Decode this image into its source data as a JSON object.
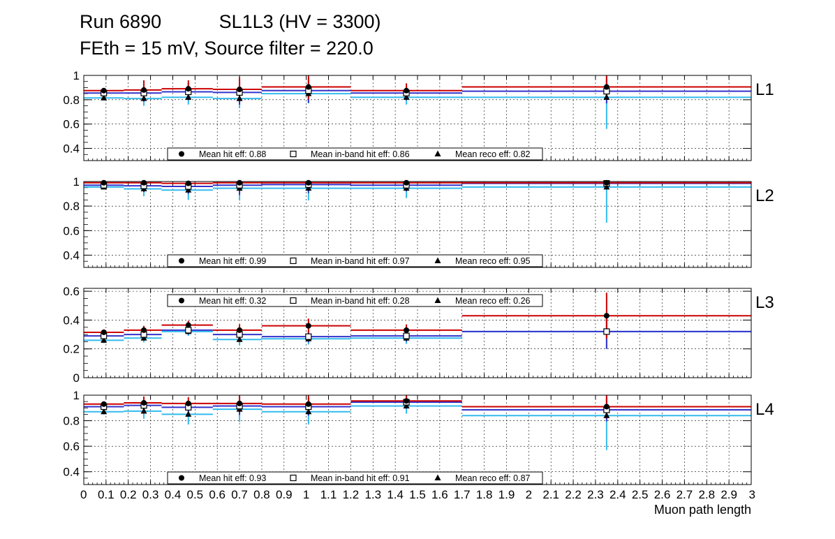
{
  "header": {
    "line1": "Run 6890           SL1L3 (HV = 3300)",
    "line2": "FEth = 15 mV, Source filter = 220.0"
  },
  "colors": {
    "hit": "#cc0000",
    "inband": "#3333cc",
    "reco": "#33bbee",
    "marker": "#000000"
  },
  "chart_data": [
    {
      "type": "scatter",
      "layer_label": "L1",
      "xlim": [
        0,
        3
      ],
      "ylim": [
        0.3,
        1.0
      ],
      "yticks": [
        0.4,
        0.6,
        0.8,
        1
      ],
      "ytick_labels": [
        "0.4",
        "0.6",
        "0.8",
        "1"
      ],
      "grid": true,
      "legend_position": "bottom-center",
      "bins": [
        [
          0.0,
          0.18
        ],
        [
          0.18,
          0.35
        ],
        [
          0.35,
          0.58
        ],
        [
          0.58,
          0.8
        ],
        [
          0.8,
          1.2
        ],
        [
          1.2,
          1.7
        ],
        [
          1.7,
          3.0
        ]
      ],
      "x_points": [
        0.09,
        0.27,
        0.47,
        0.7,
        1.01,
        1.45,
        2.35
      ],
      "series": [
        {
          "name": "Mean hit  eff: 0.88",
          "marker": "circle",
          "values": [
            0.875,
            0.88,
            0.89,
            0.885,
            0.905,
            0.875,
            0.905
          ],
          "errors": [
            0.02,
            0.08,
            0.07,
            0.1,
            0.1,
            0.06,
            0.1
          ]
        },
        {
          "name": "Mean in-band hit eff: 0.86",
          "marker": "square",
          "values": [
            0.855,
            0.855,
            0.865,
            0.86,
            0.875,
            0.855,
            0.87
          ],
          "errors": [
            0.02,
            0.07,
            0.07,
            0.1,
            0.1,
            0.06,
            0.1
          ]
        },
        {
          "name": "Mean reco eff: 0.82",
          "marker": "triangle",
          "values": [
            0.815,
            0.81,
            0.82,
            0.81,
            0.85,
            0.82,
            0.82
          ],
          "errors": [
            0.02,
            0.06,
            0.06,
            0.08,
            0.08,
            0.06,
            0.26
          ]
        }
      ]
    },
    {
      "type": "scatter",
      "layer_label": "L2",
      "xlim": [
        0,
        3
      ],
      "ylim": [
        0.3,
        1.0
      ],
      "yticks": [
        0.4,
        0.6,
        0.8,
        1
      ],
      "ytick_labels": [
        "0.4",
        "0.6",
        "0.8",
        "1"
      ],
      "grid": true,
      "legend_position": "bottom-center",
      "bins": [
        [
          0.0,
          0.18
        ],
        [
          0.18,
          0.35
        ],
        [
          0.35,
          0.58
        ],
        [
          0.58,
          0.8
        ],
        [
          0.8,
          1.2
        ],
        [
          1.2,
          1.7
        ],
        [
          1.7,
          3.0
        ]
      ],
      "x_points": [
        0.09,
        0.27,
        0.47,
        0.7,
        1.01,
        1.45,
        2.35
      ],
      "series": [
        {
          "name": "Mean hit  eff: 0.99",
          "marker": "circle",
          "values": [
            0.99,
            0.99,
            0.985,
            0.99,
            0.99,
            0.99,
            0.99
          ],
          "errors": [
            0.015,
            0.04,
            0.05,
            0.06,
            0.05,
            0.04,
            0.03
          ]
        },
        {
          "name": "Mean in-band hit eff: 0.97",
          "marker": "square",
          "values": [
            0.97,
            0.965,
            0.96,
            0.97,
            0.975,
            0.97,
            0.985
          ],
          "errors": [
            0.015,
            0.05,
            0.06,
            0.08,
            0.07,
            0.05,
            0.05
          ]
        },
        {
          "name": "Mean reco eff: 0.95",
          "marker": "triangle",
          "values": [
            0.955,
            0.94,
            0.93,
            0.945,
            0.945,
            0.945,
            0.955
          ],
          "errors": [
            0.015,
            0.06,
            0.08,
            0.1,
            0.1,
            0.08,
            0.29
          ]
        }
      ]
    },
    {
      "type": "scatter",
      "layer_label": "L3",
      "xlim": [
        0,
        3
      ],
      "ylim": [
        0,
        0.62
      ],
      "yticks": [
        0,
        0.2,
        0.4,
        0.6
      ],
      "ytick_labels": [
        "0",
        "0.2",
        "0.4",
        "0.6"
      ],
      "grid": true,
      "legend_position": "top-center",
      "bins": [
        [
          0.0,
          0.18
        ],
        [
          0.18,
          0.35
        ],
        [
          0.35,
          0.58
        ],
        [
          0.58,
          0.8
        ],
        [
          0.8,
          1.2
        ],
        [
          1.2,
          1.7
        ],
        [
          1.7,
          3.0
        ]
      ],
      "x_points": [
        0.09,
        0.27,
        0.47,
        0.7,
        1.01,
        1.45,
        2.35
      ],
      "series": [
        {
          "name": "Mean hit  eff: 0.32",
          "marker": "circle",
          "values": [
            0.315,
            0.33,
            0.365,
            0.33,
            0.36,
            0.33,
            0.43
          ],
          "errors": [
            0.02,
            0.03,
            0.03,
            0.04,
            0.05,
            0.04,
            0.16
          ]
        },
        {
          "name": "Mean in-band hit eff: 0.28",
          "marker": "square",
          "values": [
            0.29,
            0.3,
            0.33,
            0.3,
            0.285,
            0.29,
            0.32
          ],
          "errors": [
            0.02,
            0.03,
            0.03,
            0.04,
            0.04,
            0.04,
            0.12
          ]
        },
        {
          "name": "Mean reco eff: 0.26",
          "marker": "triangle",
          "values": [
            0.26,
            0.275,
            0.32,
            0.265,
            0.27,
            0.275,
            0.32
          ],
          "errors": [
            0.02,
            0.03,
            0.03,
            0.04,
            0.04,
            0.04,
            0.12
          ]
        }
      ]
    },
    {
      "type": "scatter",
      "layer_label": "L4",
      "xlim": [
        0,
        3
      ],
      "ylim": [
        0.3,
        1.0
      ],
      "yticks": [
        0.4,
        0.6,
        0.8,
        1
      ],
      "ytick_labels": [
        "0.4",
        "0.6",
        "0.8",
        "1"
      ],
      "grid": true,
      "legend_position": "bottom-center",
      "xticks": [
        0,
        0.1,
        0.2,
        0.3,
        0.4,
        0.5,
        0.6,
        0.7,
        0.8,
        0.9,
        1,
        1.1,
        1.2,
        1.3,
        1.4,
        1.5,
        1.6,
        1.7,
        1.8,
        1.9,
        2,
        2.1,
        2.2,
        2.3,
        2.4,
        2.5,
        2.6,
        2.7,
        2.8,
        2.9,
        3
      ],
      "xtick_labels": [
        "0",
        "0.1",
        "0.2",
        "0.3",
        "0.4",
        "0.5",
        "0.6",
        "0.7",
        "0.8",
        "0.9",
        "1",
        "1.1",
        "1.2",
        "1.3",
        "1.4",
        "1.5",
        "1.6",
        "1.7",
        "1.8",
        "1.9",
        "2",
        "2.1",
        "2.2",
        "2.3",
        "2.4",
        "2.5",
        "2.6",
        "2.7",
        "2.8",
        "2.9",
        "3"
      ],
      "xlabel": "Muon path length",
      "bins": [
        [
          0.0,
          0.18
        ],
        [
          0.18,
          0.35
        ],
        [
          0.35,
          0.58
        ],
        [
          0.58,
          0.8
        ],
        [
          0.8,
          1.2
        ],
        [
          1.2,
          1.7
        ],
        [
          1.7,
          3.0
        ]
      ],
      "x_points": [
        0.09,
        0.27,
        0.47,
        0.7,
        1.01,
        1.45,
        2.35
      ],
      "series": [
        {
          "name": "Mean hit  eff: 0.93",
          "marker": "circle",
          "values": [
            0.93,
            0.94,
            0.935,
            0.935,
            0.93,
            0.955,
            0.91
          ],
          "errors": [
            0.02,
            0.05,
            0.05,
            0.07,
            0.07,
            0.05,
            0.09
          ]
        },
        {
          "name": "Mean in-band hit eff: 0.91",
          "marker": "square",
          "values": [
            0.91,
            0.92,
            0.905,
            0.915,
            0.91,
            0.945,
            0.885
          ],
          "errors": [
            0.02,
            0.05,
            0.05,
            0.07,
            0.07,
            0.05,
            0.09
          ]
        },
        {
          "name": "Mean reco eff: 0.87",
          "marker": "triangle",
          "values": [
            0.87,
            0.875,
            0.85,
            0.89,
            0.87,
            0.915,
            0.84
          ],
          "errors": [
            0.02,
            0.06,
            0.08,
            0.1,
            0.1,
            0.06,
            0.27
          ]
        }
      ]
    }
  ]
}
